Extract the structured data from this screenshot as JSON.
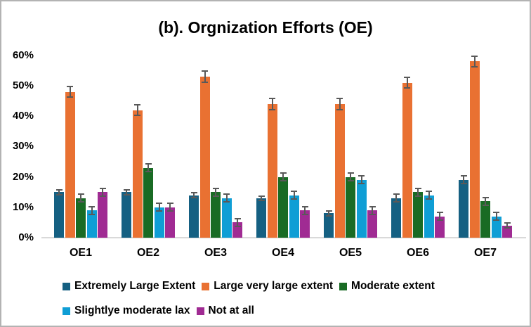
{
  "frame": {
    "background": "#FFFFFF",
    "border_color": "#B3B3B3"
  },
  "chart_data": {
    "type": "bar",
    "title": "(b). Orgnization Efforts (OE)",
    "categories": [
      "OE1",
      "OE2",
      "OE3",
      "OE4",
      "OE5",
      "OE6",
      "OE7"
    ],
    "series": [
      {
        "name": "Extremely Large Extent",
        "color": "#156082",
        "values": [
          15,
          15,
          14,
          13,
          8,
          13,
          19
        ],
        "errors": [
          1,
          1,
          1,
          1,
          1,
          1.5,
          1.5
        ]
      },
      {
        "name": "Large very large extent",
        "color": "#E97132",
        "values": [
          48,
          42,
          53,
          44,
          44,
          51,
          58
        ],
        "errors": [
          2,
          2,
          2,
          2,
          2,
          2,
          2
        ]
      },
      {
        "name": "Moderate extent",
        "color": "#196B24",
        "values": [
          13,
          23,
          15,
          20,
          20,
          15,
          12
        ],
        "errors": [
          1.5,
          1.5,
          1.5,
          1.5,
          1.5,
          1.5,
          1.5
        ]
      },
      {
        "name": "Slightlye moderate lax",
        "color": "#0F9ED5",
        "values": [
          9,
          10,
          13,
          14,
          19,
          14,
          7
        ],
        "errors": [
          1.5,
          1.5,
          1.5,
          1.5,
          1.5,
          1.5,
          1.5
        ]
      },
      {
        "name": "Not at all",
        "color": "#A02B93",
        "values": [
          15,
          10,
          5,
          9,
          9,
          7,
          4
        ],
        "errors": [
          1.5,
          1.5,
          1.5,
          1.5,
          1.5,
          1.5,
          1
        ]
      }
    ],
    "ylabel": "",
    "xlabel": "",
    "ylim": [
      0,
      60
    ],
    "y_ticks": [
      "0%",
      "10%",
      "20%",
      "30%",
      "40%",
      "50%",
      "60%"
    ],
    "y_step": 10,
    "grid": "off",
    "error_bars": "on",
    "error_bar_color": "#595959",
    "axis_line_color": "#D9D9D9",
    "legend_position": "bottom",
    "legend_rows": [
      [
        0,
        1,
        2
      ],
      [
        3,
        4
      ]
    ]
  }
}
